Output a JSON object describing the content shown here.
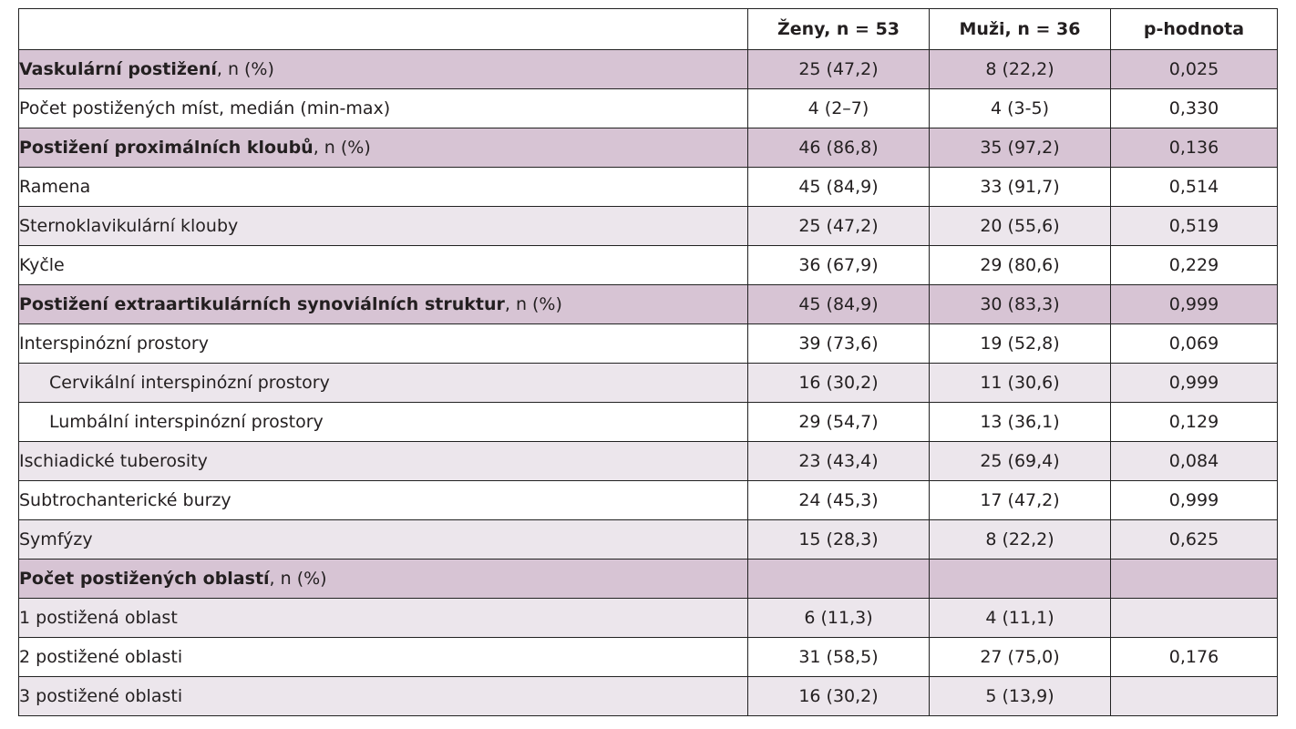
{
  "table": {
    "headers": [
      "",
      "Ženy, n = 53",
      "Muži, n = 36",
      "p-hodnota"
    ],
    "rows": [
      {
        "label_bold": "Vaskulární postižení",
        "label_rest": ", n (%)",
        "women": "25 (47,2)",
        "men": "8 (22,2)",
        "p": "0,025",
        "section": true
      },
      {
        "label": "Počet postižených míst, medián (min-max)",
        "women": "4 (2–7)",
        "men": "4 (3-5)",
        "p": "0,330"
      },
      {
        "label_bold": "Postižení proximálních kloubů",
        "label_rest": ", n (%)",
        "women": "46 (86,8)",
        "men": "35 (97,2)",
        "p": "0,136",
        "section": true
      },
      {
        "label": "Ramena",
        "women": "45 (84,9)",
        "men": "33 (91,7)",
        "p": "0,514"
      },
      {
        "label": "Sternoklavikulární klouby",
        "women": "25 (47,2)",
        "men": "20 (55,6)",
        "p": "0,519"
      },
      {
        "label": "Kyčle",
        "women": "36 (67,9)",
        "men": "29 (80,6)",
        "p": "0,229"
      },
      {
        "label_bold": "Postižení extraartikulárních synoviálních struktur",
        "label_rest": ", n (%)",
        "women": "45 (84,9)",
        "men": "30 (83,3)",
        "p": "0,999",
        "section": true
      },
      {
        "label": "Interspinózní prostory",
        "women": "39 (73,6)",
        "men": "19 (52,8)",
        "p": "0,069"
      },
      {
        "label": "Cervikální interspinózní prostory",
        "women": "16 (30,2)",
        "men": "11 (30,6)",
        "p": "0,999",
        "indent": true
      },
      {
        "label": "Lumbální interspinózní prostory",
        "women": "29 (54,7)",
        "men": "13 (36,1)",
        "p": "0,129",
        "indent": true
      },
      {
        "label": "Ischiadické tuberosity",
        "women": "23 (43,4)",
        "men": "25 (69,4)",
        "p": "0,084"
      },
      {
        "label": "Subtrochanterické burzy",
        "women": "24 (45,3)",
        "men": "17 (47,2)",
        "p": "0,999"
      },
      {
        "label": "Symfýzy",
        "women": "15 (28,3)",
        "men": "8 (22,2)",
        "p": "0,625"
      },
      {
        "label_bold": "Počet postižených oblastí",
        "label_rest": ", n (%)",
        "women": "",
        "men": "",
        "p": "",
        "section": true
      },
      {
        "label": "1 postižená oblast",
        "women": "6 (11,3)",
        "men": "4 (11,1)",
        "p": ""
      },
      {
        "label": "2 postižené oblasti",
        "women": "31 (58,5)",
        "men": "27 (75,0)",
        "p": "0,176"
      },
      {
        "label": "3 postižené oblasti",
        "women": "16 (30,2)",
        "men": "5 (13,9)",
        "p": ""
      }
    ]
  }
}
